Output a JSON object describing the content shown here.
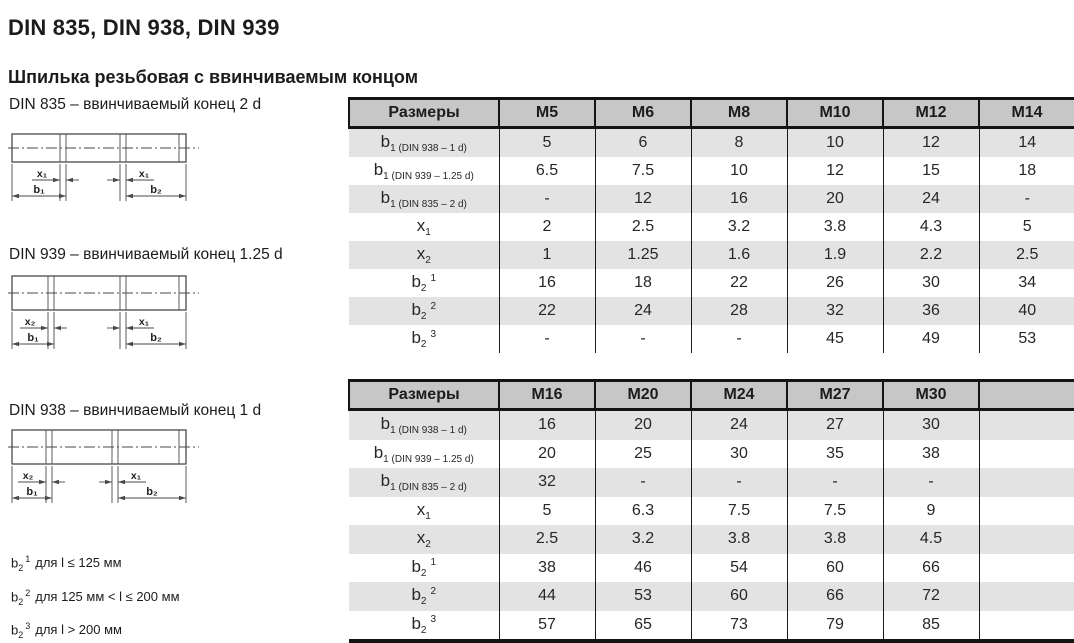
{
  "page": {
    "title": "DIN 835, DIN 938, DIN 939",
    "subtitle": "Шпилька резьбовая с ввинчиваемым концом"
  },
  "drawings": [
    {
      "title": "DIN 835 – ввинчиваемый конец 2 d",
      "labels": {
        "x_left": "x₁",
        "x_right": "x₁",
        "b_left": "b₁",
        "b_right": "b₂"
      }
    },
    {
      "title": "DIN 939 – ввинчиваемый конец 1.25 d",
      "labels": {
        "x_left": "x₂",
        "x_right": "x₁",
        "b_left": "b₁",
        "b_right": "b₂"
      }
    },
    {
      "title": "DIN 938 – ввинчиваемый конец 1 d",
      "labels": {
        "x_left": "x₂",
        "x_right": "x₁",
        "b_left": "b₁",
        "b_right": "b₂"
      }
    }
  ],
  "footnotes": [
    {
      "base": "b",
      "sub": "2",
      "sup": "1",
      "text": "для l ≤ 125 мм"
    },
    {
      "base": "b",
      "sub": "2",
      "sup": "2",
      "text": "для 125 мм < l ≤ 200 мм"
    },
    {
      "base": "b",
      "sub": "2",
      "sup": "3",
      "text": "для l > 200 мм"
    }
  ],
  "tables": [
    {
      "columns": [
        "Размеры",
        "M5",
        "M6",
        "M8",
        "M10",
        "M12",
        "M14"
      ],
      "rows": [
        {
          "label": {
            "base": "b",
            "sub": "1 (DIN 938 – 1 d)"
          },
          "values": [
            "5",
            "6",
            "8",
            "10",
            "12",
            "14"
          ]
        },
        {
          "label": {
            "base": "b",
            "sub": "1 (DIN 939 – 1.25 d)"
          },
          "values": [
            "6.5",
            "7.5",
            "10",
            "12",
            "15",
            "18"
          ]
        },
        {
          "label": {
            "base": "b",
            "sub": "1 (DIN 835 – 2 d)"
          },
          "values": [
            "-",
            "12",
            "16",
            "20",
            "24",
            "-"
          ]
        },
        {
          "label": {
            "base": "x",
            "sub": "1"
          },
          "values": [
            "2",
            "2.5",
            "3.2",
            "3.8",
            "4.3",
            "5"
          ]
        },
        {
          "label": {
            "base": "x",
            "sub": "2"
          },
          "values": [
            "1",
            "1.25",
            "1.6",
            "1.9",
            "2.2",
            "2.5"
          ]
        },
        {
          "label": {
            "base": "b",
            "sub": "2",
            "sup": "1"
          },
          "values": [
            "16",
            "18",
            "22",
            "26",
            "30",
            "34"
          ]
        },
        {
          "label": {
            "base": "b",
            "sub": "2",
            "sup": "2"
          },
          "values": [
            "22",
            "24",
            "28",
            "32",
            "36",
            "40"
          ]
        },
        {
          "label": {
            "base": "b",
            "sub": "2",
            "sup": "3"
          },
          "values": [
            "-",
            "-",
            "-",
            "45",
            "49",
            "53"
          ]
        }
      ]
    },
    {
      "columns": [
        "Размеры",
        "M16",
        "M20",
        "M24",
        "M27",
        "M30",
        ""
      ],
      "rows": [
        {
          "label": {
            "base": "b",
            "sub": "1 (DIN 938 – 1 d)"
          },
          "values": [
            "16",
            "20",
            "24",
            "27",
            "30",
            ""
          ]
        },
        {
          "label": {
            "base": "b",
            "sub": "1 (DIN 939 – 1.25 d)"
          },
          "values": [
            "20",
            "25",
            "30",
            "35",
            "38",
            ""
          ]
        },
        {
          "label": {
            "base": "b",
            "sub": "1 (DIN 835 – 2 d)"
          },
          "values": [
            "32",
            "-",
            "-",
            "-",
            "-",
            ""
          ]
        },
        {
          "label": {
            "base": "x",
            "sub": "1"
          },
          "values": [
            "5",
            "6.3",
            "7.5",
            "7.5",
            "9",
            ""
          ]
        },
        {
          "label": {
            "base": "x",
            "sub": "2"
          },
          "values": [
            "2.5",
            "3.2",
            "3.8",
            "3.8",
            "4.5",
            ""
          ]
        },
        {
          "label": {
            "base": "b",
            "sub": "2",
            "sup": "1"
          },
          "values": [
            "38",
            "46",
            "54",
            "60",
            "66",
            ""
          ]
        },
        {
          "label": {
            "base": "b",
            "sub": "2",
            "sup": "2"
          },
          "values": [
            "44",
            "53",
            "60",
            "66",
            "72",
            ""
          ]
        },
        {
          "label": {
            "base": "b",
            "sub": "2",
            "sup": "3"
          },
          "values": [
            "57",
            "65",
            "73",
            "79",
            "85",
            ""
          ]
        }
      ]
    }
  ],
  "colors": {
    "header_bg": "#c7c7c7",
    "row_alt_bg": "#e3e3e3",
    "rule": "#141414",
    "drawing_line": "#4a4a4a"
  }
}
